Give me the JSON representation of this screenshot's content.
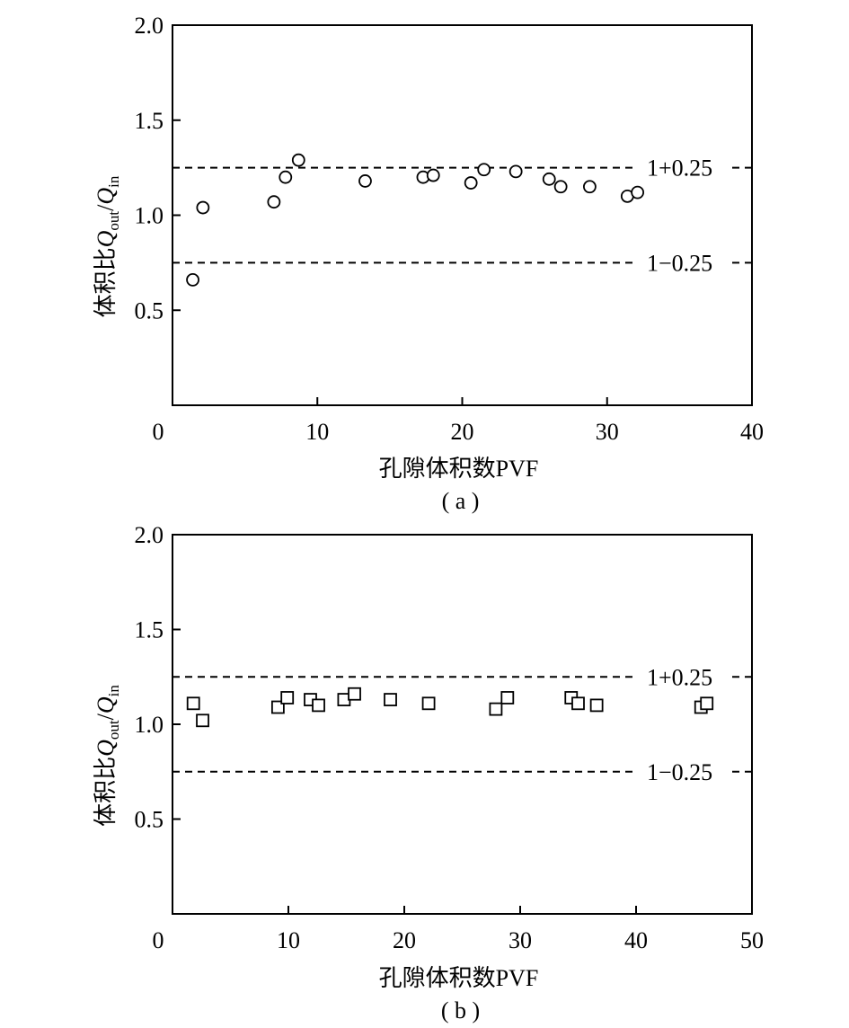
{
  "chart_data": [
    {
      "type": "scatter",
      "panel_label": "( a )",
      "marker": "circle",
      "xlabel": "孔隙体积数PVF",
      "ylabel_main": "体积比",
      "ylabel_q1": "Q",
      "ylabel_sub1": "out",
      "ylabel_slash": "/",
      "ylabel_q2": "Q",
      "ylabel_sub2": "in",
      "xlim": [
        0,
        40
      ],
      "ylim": [
        0,
        2.0
      ],
      "xticks": [
        {
          "value": 0,
          "label": "0"
        },
        {
          "value": 10,
          "label": "10"
        },
        {
          "value": 20,
          "label": "20"
        },
        {
          "value": 30,
          "label": "30"
        },
        {
          "value": 40,
          "label": "40"
        }
      ],
      "yticks": [
        {
          "value": 0.5,
          "label": "0.5"
        },
        {
          "value": 1.0,
          "label": "1.0"
        },
        {
          "value": 1.5,
          "label": "1.5"
        },
        {
          "value": 2.0,
          "label": "2.0"
        }
      ],
      "reference_lines": [
        {
          "y": 1.25,
          "label": "1+0.25"
        },
        {
          "y": 0.75,
          "label": "1−0.25"
        }
      ],
      "points": [
        {
          "x": 1.4,
          "y": 0.66
        },
        {
          "x": 2.1,
          "y": 1.04
        },
        {
          "x": 7.0,
          "y": 1.07
        },
        {
          "x": 7.8,
          "y": 1.2
        },
        {
          "x": 8.7,
          "y": 1.29
        },
        {
          "x": 13.3,
          "y": 1.18
        },
        {
          "x": 17.3,
          "y": 1.2
        },
        {
          "x": 18.0,
          "y": 1.21
        },
        {
          "x": 20.6,
          "y": 1.17
        },
        {
          "x": 21.5,
          "y": 1.24
        },
        {
          "x": 23.7,
          "y": 1.23
        },
        {
          "x": 26.0,
          "y": 1.19
        },
        {
          "x": 26.8,
          "y": 1.15
        },
        {
          "x": 28.8,
          "y": 1.15
        },
        {
          "x": 31.4,
          "y": 1.1
        },
        {
          "x": 32.1,
          "y": 1.12
        }
      ]
    },
    {
      "type": "scatter",
      "panel_label": "( b )",
      "marker": "square",
      "xlabel": "孔隙体积数PVF",
      "ylabel_main": "体积比",
      "ylabel_q1": "Q",
      "ylabel_sub1": "out",
      "ylabel_slash": "/",
      "ylabel_q2": "Q",
      "ylabel_sub2": "in",
      "xlim": [
        0,
        50
      ],
      "ylim": [
        0,
        2.0
      ],
      "xticks": [
        {
          "value": 0,
          "label": "0"
        },
        {
          "value": 10,
          "label": "10"
        },
        {
          "value": 20,
          "label": "20"
        },
        {
          "value": 30,
          "label": "30"
        },
        {
          "value": 40,
          "label": "40"
        },
        {
          "value": 50,
          "label": "50"
        }
      ],
      "yticks": [
        {
          "value": 0.5,
          "label": "0.5"
        },
        {
          "value": 1.0,
          "label": "1.0"
        },
        {
          "value": 1.5,
          "label": "1.5"
        },
        {
          "value": 2.0,
          "label": "2.0"
        }
      ],
      "reference_lines": [
        {
          "y": 1.25,
          "label": "1+0.25"
        },
        {
          "y": 0.75,
          "label": "1−0.25"
        }
      ],
      "points": [
        {
          "x": 1.8,
          "y": 1.11
        },
        {
          "x": 2.6,
          "y": 1.02
        },
        {
          "x": 9.1,
          "y": 1.09
        },
        {
          "x": 9.9,
          "y": 1.14
        },
        {
          "x": 11.9,
          "y": 1.13
        },
        {
          "x": 12.6,
          "y": 1.1
        },
        {
          "x": 14.8,
          "y": 1.13
        },
        {
          "x": 15.7,
          "y": 1.16
        },
        {
          "x": 18.8,
          "y": 1.13
        },
        {
          "x": 22.1,
          "y": 1.11
        },
        {
          "x": 27.9,
          "y": 1.08
        },
        {
          "x": 28.9,
          "y": 1.14
        },
        {
          "x": 34.4,
          "y": 1.14
        },
        {
          "x": 35.0,
          "y": 1.11
        },
        {
          "x": 36.6,
          "y": 1.1
        },
        {
          "x": 45.6,
          "y": 1.09
        },
        {
          "x": 46.1,
          "y": 1.11
        }
      ]
    }
  ]
}
